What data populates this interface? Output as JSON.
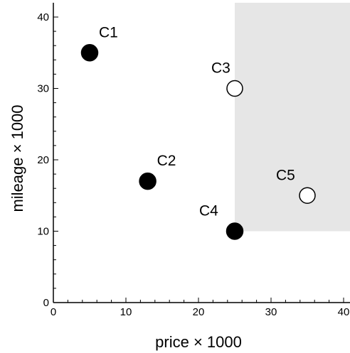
{
  "chart_data": {
    "type": "scatter",
    "title": "",
    "xlabel": "price × 1000",
    "ylabel": "mileage × 1000",
    "xlim": [
      0,
      41.5
    ],
    "ylim": [
      0,
      42
    ],
    "xticks": [
      0,
      10,
      20,
      30,
      40
    ],
    "yticks": [
      0,
      10,
      20,
      30,
      40
    ],
    "grid": false,
    "shaded_region": {
      "x": [
        25,
        41.5
      ],
      "y": [
        10,
        42
      ],
      "color": "#e6e6e6"
    },
    "points": [
      {
        "label": "C1",
        "x": 5,
        "y": 35,
        "filled": true
      },
      {
        "label": "C2",
        "x": 13,
        "y": 17,
        "filled": true
      },
      {
        "label": "C3",
        "x": 25,
        "y": 30,
        "filled": false
      },
      {
        "label": "C4",
        "x": 25,
        "y": 10,
        "filled": true
      },
      {
        "label": "C5",
        "x": 35,
        "y": 15,
        "filled": false
      }
    ],
    "colors": {
      "filled": "#000000",
      "open_fill": "#ffffff",
      "stroke": "#000000"
    }
  }
}
